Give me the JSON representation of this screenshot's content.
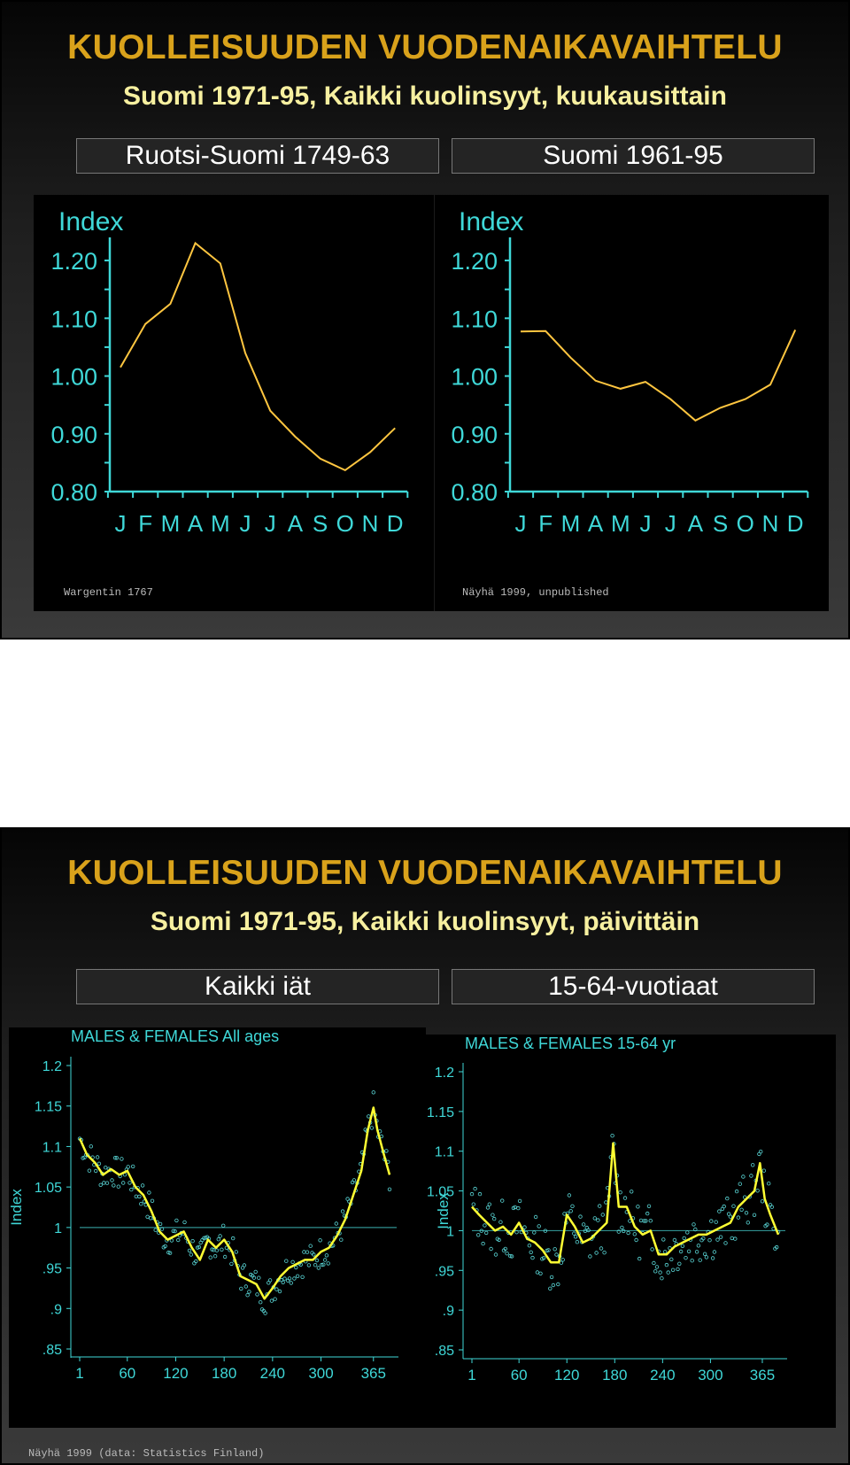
{
  "slide1": {
    "title": "KUOLLEISUUDEN VUODENAIKAVAIHTELU",
    "subtitle": "Suomi 1971-95, Kaikki kuolinsyyt, kuukausittain",
    "panel_left_label": "Ruotsi-Suomi 1749-63",
    "panel_right_label": "Suomi 1961-95",
    "source_left": "Wargentin 1767",
    "source_right": "Näyhä 1999, unpublished"
  },
  "slide2": {
    "title": "KUOLLEISUUDEN VUODENAIKAVAIHTELU",
    "subtitle": "Suomi 1971-95, Kaikki kuolinsyyt, päivittäin",
    "panel_left_label": "Kaikki iät",
    "panel_right_label": "15-64-vuotiaat",
    "source": "Näyhä 1999 (data: Statistics Finland)"
  },
  "colors": {
    "title": "#d9a21b",
    "subtitle": "#f7f0a0",
    "axis": "#3fd8d8",
    "monthly_line": "#ffc640",
    "daily_line": "#ffff33",
    "daily_points": "#5ad7d7",
    "reference_line": "#2f8f8f"
  },
  "chart_data": [
    {
      "type": "line",
      "ylabel": "Index",
      "categories": [
        "J",
        "F",
        "M",
        "A",
        "M",
        "J",
        "J",
        "A",
        "S",
        "O",
        "N",
        "D"
      ],
      "yticks": [
        "1.20",
        "1.10",
        "1.00",
        "0.90",
        "0.80"
      ],
      "ylim": [
        0.8,
        1.24
      ],
      "series": [
        {
          "values": [
            1.015,
            1.09,
            1.125,
            1.23,
            1.195,
            1.04,
            0.94,
            0.895,
            0.857,
            0.837,
            0.868,
            0.91
          ]
        }
      ],
      "grid": false
    },
    {
      "type": "line",
      "ylabel": "Index",
      "categories": [
        "J",
        "F",
        "M",
        "A",
        "M",
        "J",
        "J",
        "A",
        "S",
        "O",
        "N",
        "D"
      ],
      "yticks": [
        "1.20",
        "1.10",
        "1.00",
        "0.90",
        "0.80"
      ],
      "ylim": [
        0.8,
        1.24
      ],
      "series": [
        {
          "values": [
            1.077,
            1.078,
            1.032,
            0.992,
            0.978,
            0.99,
            0.96,
            0.923,
            0.945,
            0.96,
            0.985,
            1.08
          ]
        }
      ],
      "grid": false
    },
    {
      "type": "scatter",
      "title": "MALES & FEMALES All ages",
      "ylabel": "Index",
      "xticks": [
        "1",
        "60",
        "120",
        "180",
        "240",
        "300",
        "365"
      ],
      "yticks": [
        "1.2",
        "1.15",
        "1.1",
        "1.05",
        "1",
        ".95",
        ".9",
        ".85"
      ],
      "xlim": [
        1,
        385
      ],
      "ylim": [
        0.85,
        1.2
      ],
      "reference_line": 1.0,
      "smooth": [
        [
          1,
          1.11
        ],
        [
          10,
          1.09
        ],
        [
          20,
          1.08
        ],
        [
          30,
          1.065
        ],
        [
          40,
          1.072
        ],
        [
          50,
          1.065
        ],
        [
          60,
          1.07
        ],
        [
          70,
          1.05
        ],
        [
          80,
          1.04
        ],
        [
          90,
          1.02
        ],
        [
          100,
          0.995
        ],
        [
          110,
          0.985
        ],
        [
          120,
          0.99
        ],
        [
          130,
          0.995
        ],
        [
          140,
          0.975
        ],
        [
          150,
          0.96
        ],
        [
          160,
          0.985
        ],
        [
          170,
          0.975
        ],
        [
          180,
          0.985
        ],
        [
          190,
          0.97
        ],
        [
          200,
          0.94
        ],
        [
          210,
          0.935
        ],
        [
          220,
          0.93
        ],
        [
          230,
          0.912
        ],
        [
          240,
          0.925
        ],
        [
          250,
          0.94
        ],
        [
          260,
          0.95
        ],
        [
          270,
          0.955
        ],
        [
          280,
          0.96
        ],
        [
          290,
          0.96
        ],
        [
          300,
          0.97
        ],
        [
          310,
          0.975
        ],
        [
          320,
          0.99
        ],
        [
          330,
          1.01
        ],
        [
          340,
          1.04
        ],
        [
          350,
          1.07
        ],
        [
          358,
          1.12
        ],
        [
          365,
          1.148
        ],
        [
          370,
          1.12
        ],
        [
          378,
          1.09
        ],
        [
          385,
          1.065
        ]
      ],
      "grid": false
    },
    {
      "type": "scatter",
      "title": "MALES & FEMALES 15-64 yr",
      "ylabel": "Index",
      "xticks": [
        "1",
        "60",
        "120",
        "180",
        "240",
        "300",
        "365"
      ],
      "yticks": [
        "1.2",
        "1.15",
        "1.1",
        "1.05",
        "1",
        ".95",
        ".9",
        ".85"
      ],
      "xlim": [
        1,
        385
      ],
      "ylim": [
        0.85,
        1.2
      ],
      "reference_line": 1.0,
      "smooth": [
        [
          1,
          1.03
        ],
        [
          10,
          1.02
        ],
        [
          20,
          1.01
        ],
        [
          30,
          1.0
        ],
        [
          40,
          1.005
        ],
        [
          50,
          0.995
        ],
        [
          60,
          1.01
        ],
        [
          70,
          0.99
        ],
        [
          80,
          0.985
        ],
        [
          90,
          0.975
        ],
        [
          100,
          0.96
        ],
        [
          110,
          0.96
        ],
        [
          120,
          1.02
        ],
        [
          130,
          1.005
        ],
        [
          140,
          0.985
        ],
        [
          150,
          0.99
        ],
        [
          160,
          1.0
        ],
        [
          170,
          1.01
        ],
        [
          178,
          1.11
        ],
        [
          185,
          1.03
        ],
        [
          195,
          1.03
        ],
        [
          205,
          1.005
        ],
        [
          215,
          0.995
        ],
        [
          225,
          1.0
        ],
        [
          235,
          0.97
        ],
        [
          245,
          0.97
        ],
        [
          255,
          0.98
        ],
        [
          265,
          0.985
        ],
        [
          275,
          0.99
        ],
        [
          285,
          0.995
        ],
        [
          295,
          0.995
        ],
        [
          305,
          1.0
        ],
        [
          315,
          1.005
        ],
        [
          325,
          1.01
        ],
        [
          335,
          1.03
        ],
        [
          345,
          1.04
        ],
        [
          355,
          1.05
        ],
        [
          362,
          1.085
        ],
        [
          368,
          1.04
        ],
        [
          375,
          1.02
        ],
        [
          385,
          0.995
        ]
      ],
      "grid": false
    }
  ]
}
